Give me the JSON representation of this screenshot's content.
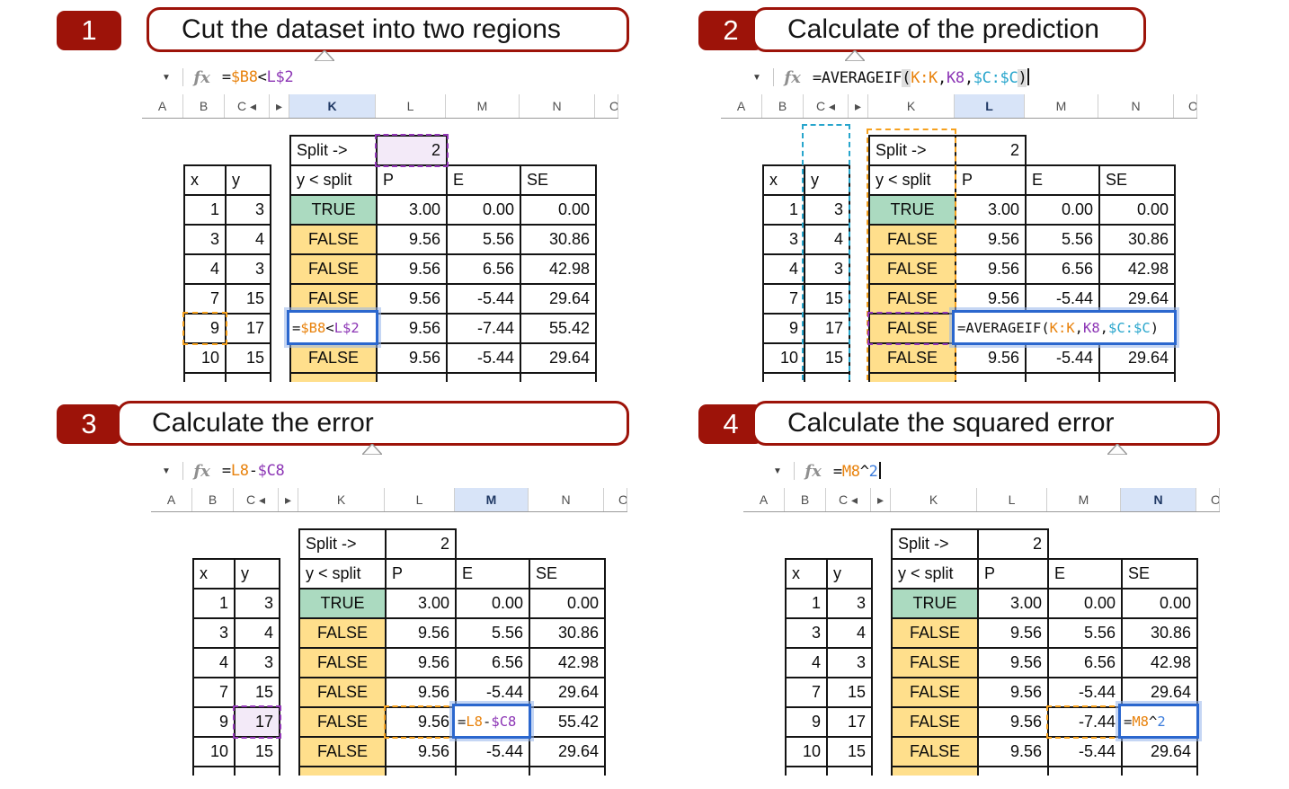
{
  "colors": {
    "accent_red": "#9D1309",
    "true_cell_green": "#ABDAC0",
    "false_cell_yellow": "#FFDF8C",
    "selected_column_bg": "#D8E4F8",
    "selected_column_text": "#1F3864",
    "reference_orange": "#F6A11E",
    "reference_purple": "#9338B8",
    "reference_cyan": "#27A5CC",
    "formula_blue": "#3B7CDC",
    "editing_border_blue": "#2B67CE",
    "lavender_fill": "#F3EAF8"
  },
  "spreadsheet": {
    "columns": [
      "A",
      "B",
      "C ◂",
      "▸",
      "K",
      "L",
      "M",
      "N",
      "O"
    ],
    "split_label": "Split ->",
    "split_value": "2",
    "xy_headers": [
      "x",
      "y"
    ],
    "main_headers": [
      "y < split",
      "P",
      "E",
      "SE"
    ],
    "rows": [
      {
        "x": "1",
        "y": "3",
        "flag": "TRUE",
        "p": "3.00",
        "e": "0.00",
        "se": "0.00"
      },
      {
        "x": "3",
        "y": "4",
        "flag": "FALSE",
        "p": "9.56",
        "e": "5.56",
        "se": "30.86"
      },
      {
        "x": "4",
        "y": "3",
        "flag": "FALSE",
        "p": "9.56",
        "e": "6.56",
        "se": "42.98"
      },
      {
        "x": "7",
        "y": "15",
        "flag": "FALSE",
        "p": "9.56",
        "e": "-5.44",
        "se": "29.64"
      },
      {
        "x": "9",
        "y": "17",
        "flag": "FALSE",
        "p": "9.56",
        "e": "-7.44",
        "se": "55.42"
      },
      {
        "x": "10",
        "y": "15",
        "flag": "FALSE",
        "p": "9.56",
        "e": "-5.44",
        "se": "29.64"
      }
    ]
  },
  "panels": [
    {
      "number": "1",
      "title": "Cut the dataset into two regions",
      "selected_column": "K",
      "cursor": false,
      "formula": [
        {
          "t": "=",
          "c": "k"
        },
        {
          "t": "$B8",
          "c": "o"
        },
        {
          "t": "<",
          "c": "k"
        },
        {
          "t": "L$2",
          "c": "p"
        }
      ],
      "edit": {
        "col": "K",
        "span": 1,
        "tokens": [
          {
            "t": "=",
            "c": "k"
          },
          {
            "t": "$B8",
            "c": "o"
          },
          {
            "t": "<",
            "c": "k"
          },
          {
            "t": "L$2",
            "c": "p"
          }
        ]
      },
      "marks": [
        {
          "cell": "split_value",
          "type": "purple",
          "fill": true
        },
        {
          "cell": "x-4",
          "type": "orange"
        }
      ],
      "bands": []
    },
    {
      "number": "2",
      "title": "Calculate of the prediction",
      "selected_column": "L",
      "cursor": true,
      "formula": [
        {
          "t": "=AVERAGEIF",
          "c": "k"
        },
        {
          "t": "(",
          "c": "k",
          "hl": true
        },
        {
          "t": "K:K",
          "c": "o"
        },
        {
          "t": ",",
          "c": "k"
        },
        {
          "t": "K8",
          "c": "p"
        },
        {
          "t": ",",
          "c": "k"
        },
        {
          "t": "$C:$C",
          "c": "c"
        },
        {
          "t": ")",
          "c": "k",
          "hl": true
        }
      ],
      "edit": {
        "col": "L",
        "span": 3,
        "tokens": [
          {
            "t": "=AVERAGEIF(",
            "c": "k"
          },
          {
            "t": "K:K",
            "c": "o"
          },
          {
            "t": ",",
            "c": "k"
          },
          {
            "t": "K8",
            "c": "p"
          },
          {
            "t": ",",
            "c": "k"
          },
          {
            "t": "$C:$C",
            "c": "c"
          },
          {
            "t": ")",
            "c": "k"
          }
        ]
      },
      "marks": [
        {
          "cell": "flag-4",
          "type": "purple"
        }
      ],
      "bands": [
        {
          "target": "y_column",
          "color": "cyan"
        },
        {
          "target": "flag_column",
          "color": "orange"
        }
      ]
    },
    {
      "number": "3",
      "title": "Calculate the error",
      "selected_column": "M",
      "cursor": false,
      "formula": [
        {
          "t": "=",
          "c": "k"
        },
        {
          "t": "L8",
          "c": "o"
        },
        {
          "t": "-",
          "c": "k"
        },
        {
          "t": "$C8",
          "c": "p"
        }
      ],
      "edit": {
        "col": "M",
        "span": 1,
        "tokens": [
          {
            "t": "=",
            "c": "k"
          },
          {
            "t": "L8",
            "c": "o"
          },
          {
            "t": "-",
            "c": "k"
          },
          {
            "t": "$C8",
            "c": "p"
          }
        ]
      },
      "marks": [
        {
          "cell": "y-4",
          "type": "purple",
          "fill": true
        },
        {
          "cell": "p-4",
          "type": "orange"
        }
      ],
      "bands": []
    },
    {
      "number": "4",
      "title": "Calculate the squared error",
      "selected_column": "N",
      "cursor": true,
      "formula": [
        {
          "t": "=",
          "c": "k"
        },
        {
          "t": "M8",
          "c": "o"
        },
        {
          "t": "^",
          "c": "k"
        },
        {
          "t": "2",
          "c": "b"
        }
      ],
      "edit": {
        "col": "N",
        "span": 1,
        "tokens": [
          {
            "t": "=",
            "c": "k"
          },
          {
            "t": "M8",
            "c": "o"
          },
          {
            "t": "^",
            "c": "k"
          },
          {
            "t": "2",
            "c": "b"
          }
        ]
      },
      "marks": [
        {
          "cell": "e-4",
          "type": "orange"
        }
      ],
      "bands": []
    }
  ]
}
